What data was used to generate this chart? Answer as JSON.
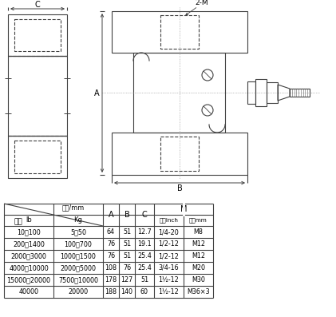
{
  "bg_color": "#ffffff",
  "line_color": "#404040",
  "table_data": [
    [
      "10～100",
      "5～50",
      "64",
      "51",
      "12.7",
      "1/4-20",
      "M8"
    ],
    [
      "200～1400",
      "100～700",
      "76",
      "51",
      "19.1",
      "1/2-12",
      "M12"
    ],
    [
      "2000～3000",
      "1000～1500",
      "76",
      "51",
      "25.4",
      "1/2-12",
      "M12"
    ],
    [
      "4000～10000",
      "2000～5000",
      "108",
      "76",
      "25.4",
      "3/4-16",
      "M20"
    ],
    [
      "15000～20000",
      "7500～10000",
      "178",
      "127",
      "51",
      "1½-12",
      "M30"
    ],
    [
      "40000",
      "20000",
      "188",
      "140",
      "60",
      "1½-12",
      "M36×3"
    ]
  ],
  "label_2M": "2-M",
  "label_A": "A",
  "label_B": "B",
  "label_C": "C",
  "label_lb": "lb",
  "label_kg": "Kg",
  "label_liang_cheng": "量程",
  "label_chi_cun": "尺寸/mm",
  "label_yingzhi": "英制Inch",
  "label_gongzhi": "公制mm",
  "label_M": "M"
}
